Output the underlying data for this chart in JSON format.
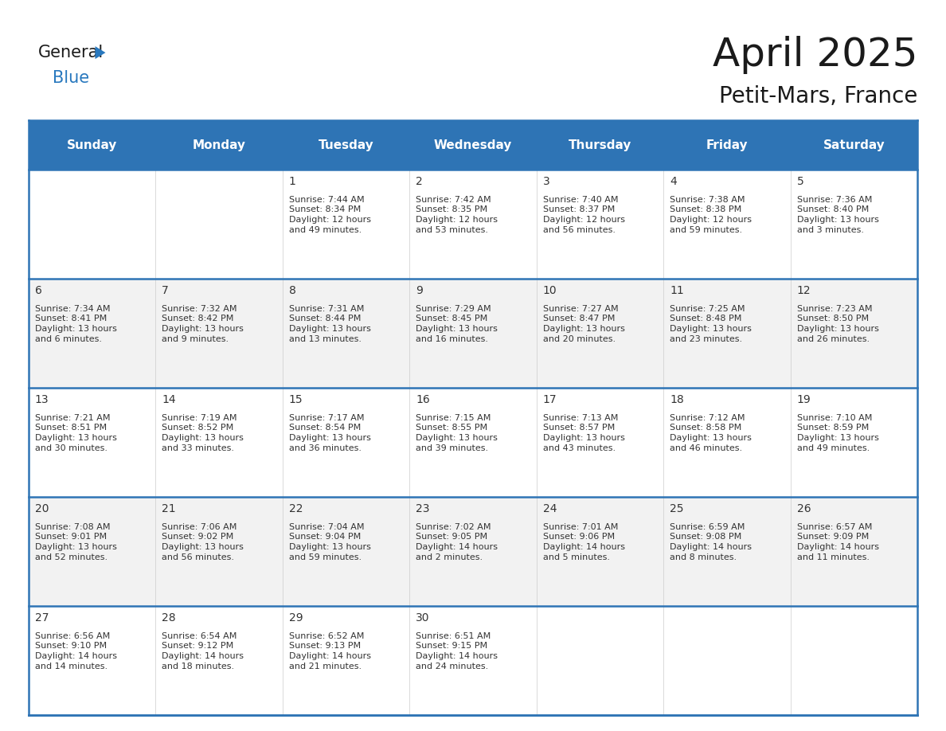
{
  "title": "April 2025",
  "subtitle": "Petit-Mars, France",
  "header_bg": "#2E74B5",
  "header_text_color": "#FFFFFF",
  "row_bg_odd": "#FFFFFF",
  "row_bg_even": "#F2F2F2",
  "border_color": "#2E74B5",
  "text_color": "#333333",
  "days_of_week": [
    "Sunday",
    "Monday",
    "Tuesday",
    "Wednesday",
    "Thursday",
    "Friday",
    "Saturday"
  ],
  "calendar_data": [
    [
      {
        "day": "",
        "info": ""
      },
      {
        "day": "",
        "info": ""
      },
      {
        "day": "1",
        "info": "Sunrise: 7:44 AM\nSunset: 8:34 PM\nDaylight: 12 hours\nand 49 minutes."
      },
      {
        "day": "2",
        "info": "Sunrise: 7:42 AM\nSunset: 8:35 PM\nDaylight: 12 hours\nand 53 minutes."
      },
      {
        "day": "3",
        "info": "Sunrise: 7:40 AM\nSunset: 8:37 PM\nDaylight: 12 hours\nand 56 minutes."
      },
      {
        "day": "4",
        "info": "Sunrise: 7:38 AM\nSunset: 8:38 PM\nDaylight: 12 hours\nand 59 minutes."
      },
      {
        "day": "5",
        "info": "Sunrise: 7:36 AM\nSunset: 8:40 PM\nDaylight: 13 hours\nand 3 minutes."
      }
    ],
    [
      {
        "day": "6",
        "info": "Sunrise: 7:34 AM\nSunset: 8:41 PM\nDaylight: 13 hours\nand 6 minutes."
      },
      {
        "day": "7",
        "info": "Sunrise: 7:32 AM\nSunset: 8:42 PM\nDaylight: 13 hours\nand 9 minutes."
      },
      {
        "day": "8",
        "info": "Sunrise: 7:31 AM\nSunset: 8:44 PM\nDaylight: 13 hours\nand 13 minutes."
      },
      {
        "day": "9",
        "info": "Sunrise: 7:29 AM\nSunset: 8:45 PM\nDaylight: 13 hours\nand 16 minutes."
      },
      {
        "day": "10",
        "info": "Sunrise: 7:27 AM\nSunset: 8:47 PM\nDaylight: 13 hours\nand 20 minutes."
      },
      {
        "day": "11",
        "info": "Sunrise: 7:25 AM\nSunset: 8:48 PM\nDaylight: 13 hours\nand 23 minutes."
      },
      {
        "day": "12",
        "info": "Sunrise: 7:23 AM\nSunset: 8:50 PM\nDaylight: 13 hours\nand 26 minutes."
      }
    ],
    [
      {
        "day": "13",
        "info": "Sunrise: 7:21 AM\nSunset: 8:51 PM\nDaylight: 13 hours\nand 30 minutes."
      },
      {
        "day": "14",
        "info": "Sunrise: 7:19 AM\nSunset: 8:52 PM\nDaylight: 13 hours\nand 33 minutes."
      },
      {
        "day": "15",
        "info": "Sunrise: 7:17 AM\nSunset: 8:54 PM\nDaylight: 13 hours\nand 36 minutes."
      },
      {
        "day": "16",
        "info": "Sunrise: 7:15 AM\nSunset: 8:55 PM\nDaylight: 13 hours\nand 39 minutes."
      },
      {
        "day": "17",
        "info": "Sunrise: 7:13 AM\nSunset: 8:57 PM\nDaylight: 13 hours\nand 43 minutes."
      },
      {
        "day": "18",
        "info": "Sunrise: 7:12 AM\nSunset: 8:58 PM\nDaylight: 13 hours\nand 46 minutes."
      },
      {
        "day": "19",
        "info": "Sunrise: 7:10 AM\nSunset: 8:59 PM\nDaylight: 13 hours\nand 49 minutes."
      }
    ],
    [
      {
        "day": "20",
        "info": "Sunrise: 7:08 AM\nSunset: 9:01 PM\nDaylight: 13 hours\nand 52 minutes."
      },
      {
        "day": "21",
        "info": "Sunrise: 7:06 AM\nSunset: 9:02 PM\nDaylight: 13 hours\nand 56 minutes."
      },
      {
        "day": "22",
        "info": "Sunrise: 7:04 AM\nSunset: 9:04 PM\nDaylight: 13 hours\nand 59 minutes."
      },
      {
        "day": "23",
        "info": "Sunrise: 7:02 AM\nSunset: 9:05 PM\nDaylight: 14 hours\nand 2 minutes."
      },
      {
        "day": "24",
        "info": "Sunrise: 7:01 AM\nSunset: 9:06 PM\nDaylight: 14 hours\nand 5 minutes."
      },
      {
        "day": "25",
        "info": "Sunrise: 6:59 AM\nSunset: 9:08 PM\nDaylight: 14 hours\nand 8 minutes."
      },
      {
        "day": "26",
        "info": "Sunrise: 6:57 AM\nSunset: 9:09 PM\nDaylight: 14 hours\nand 11 minutes."
      }
    ],
    [
      {
        "day": "27",
        "info": "Sunrise: 6:56 AM\nSunset: 9:10 PM\nDaylight: 14 hours\nand 14 minutes."
      },
      {
        "day": "28",
        "info": "Sunrise: 6:54 AM\nSunset: 9:12 PM\nDaylight: 14 hours\nand 18 minutes."
      },
      {
        "day": "29",
        "info": "Sunrise: 6:52 AM\nSunset: 9:13 PM\nDaylight: 14 hours\nand 21 minutes."
      },
      {
        "day": "30",
        "info": "Sunrise: 6:51 AM\nSunset: 9:15 PM\nDaylight: 14 hours\nand 24 minutes."
      },
      {
        "day": "",
        "info": ""
      },
      {
        "day": "",
        "info": ""
      },
      {
        "day": "",
        "info": ""
      }
    ]
  ],
  "logo_general_color": "#1a1a1a",
  "logo_blue_color": "#2878be",
  "fig_width": 11.88,
  "fig_height": 9.18,
  "title_fontsize": 36,
  "subtitle_fontsize": 20,
  "header_fontsize": 11,
  "day_num_fontsize": 10,
  "info_fontsize": 8
}
